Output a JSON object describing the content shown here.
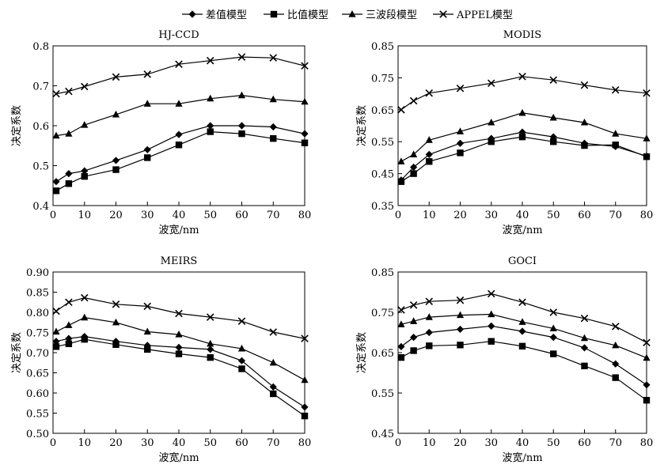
{
  "legend": [
    {
      "label": "差值模型",
      "marker": "diamond"
    },
    {
      "label": "比值模型",
      "marker": "square"
    },
    {
      "label": "三波段模型",
      "marker": "triangle"
    },
    {
      "label": "APPEL模型",
      "marker": "x"
    }
  ],
  "chart_data": [
    {
      "type": "line",
      "title": "HJ-CCD",
      "xlabel": "波宽/nm",
      "ylabel": "决定系数",
      "x": [
        1,
        5,
        10,
        20,
        30,
        40,
        50,
        60,
        70,
        80
      ],
      "xlim": [
        0,
        80
      ],
      "xticks": [
        "0",
        "10",
        "20",
        "30",
        "40",
        "50",
        "60",
        "70",
        "80"
      ],
      "ylim": [
        0.4,
        0.8
      ],
      "yticks": [
        "0.4",
        "0.5",
        "0.6",
        "0.7",
        "0.8"
      ],
      "series": [
        {
          "name": "差值模型",
          "marker": "diamond",
          "values": [
            0.46,
            0.48,
            0.487,
            0.513,
            0.54,
            0.578,
            0.6,
            0.6,
            0.597,
            0.58
          ]
        },
        {
          "name": "比值模型",
          "marker": "square",
          "values": [
            0.437,
            0.455,
            0.473,
            0.49,
            0.52,
            0.552,
            0.585,
            0.58,
            0.568,
            0.557
          ]
        },
        {
          "name": "三波段模型",
          "marker": "triangle",
          "values": [
            0.575,
            0.58,
            0.602,
            0.628,
            0.655,
            0.655,
            0.668,
            0.676,
            0.666,
            0.66
          ]
        },
        {
          "name": "APPEL模型",
          "marker": "x",
          "values": [
            0.68,
            0.686,
            0.698,
            0.722,
            0.729,
            0.754,
            0.763,
            0.772,
            0.77,
            0.75
          ]
        }
      ]
    },
    {
      "type": "line",
      "title": "MODIS",
      "xlabel": "波宽/nm",
      "ylabel": "决定系数",
      "x": [
        1,
        5,
        10,
        20,
        30,
        40,
        50,
        60,
        70,
        80
      ],
      "xlim": [
        0,
        80
      ],
      "xticks": [
        "0",
        "10",
        "20",
        "30",
        "40",
        "50",
        "60",
        "70",
        "80"
      ],
      "ylim": [
        0.35,
        0.85
      ],
      "yticks": [
        "0.35",
        "0.45",
        "0.55",
        "0.65",
        "0.75",
        "0.85"
      ],
      "series": [
        {
          "name": "差值模型",
          "marker": "diamond",
          "values": [
            0.43,
            0.47,
            0.51,
            0.545,
            0.56,
            0.58,
            0.565,
            0.545,
            0.535,
            0.505
          ]
        },
        {
          "name": "比值模型",
          "marker": "square",
          "values": [
            0.425,
            0.45,
            0.488,
            0.515,
            0.55,
            0.565,
            0.55,
            0.538,
            0.54,
            0.503
          ]
        },
        {
          "name": "三波段模型",
          "marker": "triangle",
          "values": [
            0.488,
            0.51,
            0.555,
            0.582,
            0.61,
            0.64,
            0.625,
            0.61,
            0.575,
            0.56
          ]
        },
        {
          "name": "APPEL模型",
          "marker": "x",
          "values": [
            0.65,
            0.678,
            0.702,
            0.717,
            0.733,
            0.754,
            0.743,
            0.727,
            0.712,
            0.702
          ]
        }
      ]
    },
    {
      "type": "line",
      "title": "MEIRS",
      "xlabel": "波宽/nm",
      "ylabel": "决定系数",
      "x": [
        1,
        5,
        10,
        20,
        30,
        40,
        50,
        60,
        70,
        80
      ],
      "xlim": [
        0,
        80
      ],
      "xticks": [
        "0",
        "10",
        "20",
        "30",
        "40",
        "50",
        "60",
        "70",
        "80"
      ],
      "ylim": [
        0.5,
        0.9
      ],
      "yticks": [
        "0.50",
        "0.55",
        "0.60",
        "0.65",
        "0.70",
        "0.75",
        "0.80",
        "0.85",
        "0.90"
      ],
      "series": [
        {
          "name": "差值模型",
          "marker": "diamond",
          "values": [
            0.728,
            0.735,
            0.74,
            0.728,
            0.718,
            0.713,
            0.708,
            0.68,
            0.615,
            0.565
          ]
        },
        {
          "name": "比值模型",
          "marker": "square",
          "values": [
            0.715,
            0.722,
            0.733,
            0.72,
            0.708,
            0.697,
            0.688,
            0.66,
            0.598,
            0.543
          ]
        },
        {
          "name": "三波段模型",
          "marker": "triangle",
          "values": [
            0.752,
            0.768,
            0.787,
            0.775,
            0.752,
            0.745,
            0.722,
            0.71,
            0.675,
            0.632
          ]
        },
        {
          "name": "APPEL模型",
          "marker": "x",
          "values": [
            0.803,
            0.825,
            0.836,
            0.82,
            0.815,
            0.797,
            0.788,
            0.778,
            0.751,
            0.735
          ]
        }
      ]
    },
    {
      "type": "line",
      "title": "GOCI",
      "xlabel": "波宽/nm",
      "ylabel": "决定系数",
      "x": [
        1,
        5,
        10,
        20,
        30,
        40,
        50,
        60,
        70,
        80
      ],
      "xlim": [
        0,
        80
      ],
      "xticks": [
        "0",
        "10",
        "20",
        "30",
        "40",
        "50",
        "60",
        "70",
        "80"
      ],
      "ylim": [
        0.45,
        0.85
      ],
      "yticks": [
        "0.45",
        "0.55",
        "0.65",
        "0.75",
        "0.85"
      ],
      "series": [
        {
          "name": "差值模型",
          "marker": "diamond",
          "values": [
            0.665,
            0.688,
            0.7,
            0.708,
            0.716,
            0.703,
            0.688,
            0.662,
            0.622,
            0.57
          ]
        },
        {
          "name": "比值模型",
          "marker": "square",
          "values": [
            0.638,
            0.655,
            0.667,
            0.669,
            0.678,
            0.666,
            0.647,
            0.617,
            0.588,
            0.532
          ]
        },
        {
          "name": "三波段模型",
          "marker": "triangle",
          "values": [
            0.72,
            0.728,
            0.738,
            0.743,
            0.745,
            0.726,
            0.71,
            0.686,
            0.668,
            0.637
          ]
        },
        {
          "name": "APPEL模型",
          "marker": "x",
          "values": [
            0.756,
            0.768,
            0.777,
            0.78,
            0.796,
            0.775,
            0.75,
            0.735,
            0.715,
            0.675
          ]
        }
      ]
    }
  ]
}
